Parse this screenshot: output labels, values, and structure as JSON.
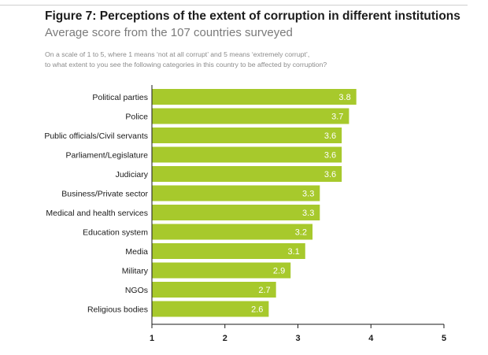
{
  "header": {
    "title": "Figure 7: Perceptions of the extent of corruption in different institutions",
    "subtitle": "Average score from the 107 countries surveyed",
    "question_line1": "On a scale of 1 to 5, where 1 means ‘not at all corrupt’ and 5 means ‘extremely corrupt’,",
    "question_line2": "to what extent to you see the following categories in this country to be affected by corruption?"
  },
  "chart_data": {
    "type": "bar",
    "orientation": "horizontal",
    "categories": [
      "Political parties",
      "Police",
      "Public officials/Civil servants",
      "Parliament/Legislature",
      "Judiciary",
      "Business/Private sector",
      "Medical and health services",
      "Education system",
      "Media",
      "Military",
      "NGOs",
      "Religious bodies"
    ],
    "values": [
      3.8,
      3.7,
      3.6,
      3.6,
      3.6,
      3.3,
      3.3,
      3.2,
      3.1,
      2.9,
      2.7,
      2.6
    ],
    "value_labels": [
      "3.8",
      "3.7",
      "3.6",
      "3.6",
      "3.6",
      "3.3",
      "3.3",
      "3.2",
      "3.1",
      "2.9",
      "2.7",
      "2.6"
    ],
    "xlim": [
      1,
      5
    ],
    "xticks": [
      "1",
      "2",
      "3",
      "4",
      "5"
    ],
    "title": "Figure 7: Perceptions of the extent of corruption in different institutions",
    "xlabel": "",
    "ylabel": "",
    "grid": false,
    "colors": {
      "bar": "#a7c92c",
      "value_label": "#ffffff",
      "axis": "#1a1a1a",
      "category_label": "#1a1a1a"
    }
  }
}
